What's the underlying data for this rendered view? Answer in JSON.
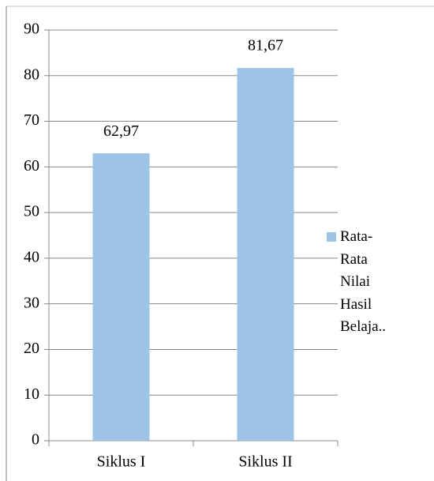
{
  "chart_data": {
    "type": "bar",
    "categories": [
      "Siklus I",
      "Siklus II"
    ],
    "series": [
      {
        "name": "Rata-Rata Nilai Hasil Belaja..",
        "color": "#9dc3e6",
        "values": [
          62.97,
          81.67
        ],
        "value_labels": [
          "62,97",
          "81,67"
        ]
      }
    ],
    "ylim": [
      0,
      90
    ],
    "yticks": [
      0,
      10,
      20,
      30,
      40,
      50,
      60,
      70,
      80,
      90
    ],
    "grid": true,
    "legend": "right"
  }
}
